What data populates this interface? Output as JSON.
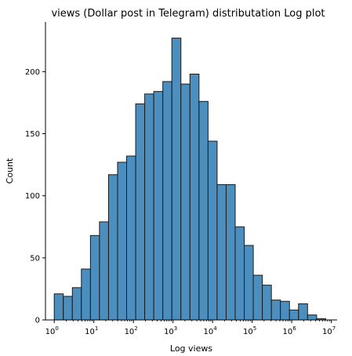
{
  "chart_data": {
    "type": "bar",
    "title": "views (Dollar post in Telegram) distributation Log plot",
    "xlabel": "Log views",
    "ylabel": "Count",
    "x_scale": "log",
    "xlim": [
      0.6,
      14000000
    ],
    "ylim": [
      0,
      240
    ],
    "grid": false,
    "legend": false,
    "bar_color": "#4c8fbf",
    "edge_color": "#1a1a1a",
    "bin_edges_log10": [
      0.0,
      0.2286,
      0.4571,
      0.6857,
      0.9143,
      1.1429,
      1.3714,
      1.6,
      1.8286,
      2.0571,
      2.2857,
      2.5143,
      2.7429,
      2.9714,
      3.2,
      3.4286,
      3.6571,
      3.8857,
      4.1143,
      4.3429,
      4.5714,
      4.8,
      5.0286,
      5.2571,
      5.4857,
      5.7143,
      5.9429,
      6.1714,
      6.4,
      6.6286,
      6.8571
    ],
    "values": [
      21,
      19,
      26,
      41,
      68,
      79,
      117,
      127,
      132,
      174,
      182,
      184,
      192,
      227,
      190,
      198,
      176,
      144,
      109,
      109,
      75,
      60,
      36,
      28,
      16,
      15,
      8,
      13,
      4,
      1,
      3
    ],
    "x_ticks": [
      {
        "base": "10",
        "exp": "0",
        "value": 1
      },
      {
        "base": "10",
        "exp": "1",
        "value": 10
      },
      {
        "base": "10",
        "exp": "2",
        "value": 100
      },
      {
        "base": "10",
        "exp": "3",
        "value": 1000
      },
      {
        "base": "10",
        "exp": "4",
        "value": 10000
      },
      {
        "base": "10",
        "exp": "5",
        "value": 100000
      },
      {
        "base": "10",
        "exp": "6",
        "value": 1000000
      },
      {
        "base": "10",
        "exp": "7",
        "value": 10000000
      }
    ],
    "y_ticks": [
      "0",
      "50",
      "100",
      "150",
      "200"
    ]
  }
}
